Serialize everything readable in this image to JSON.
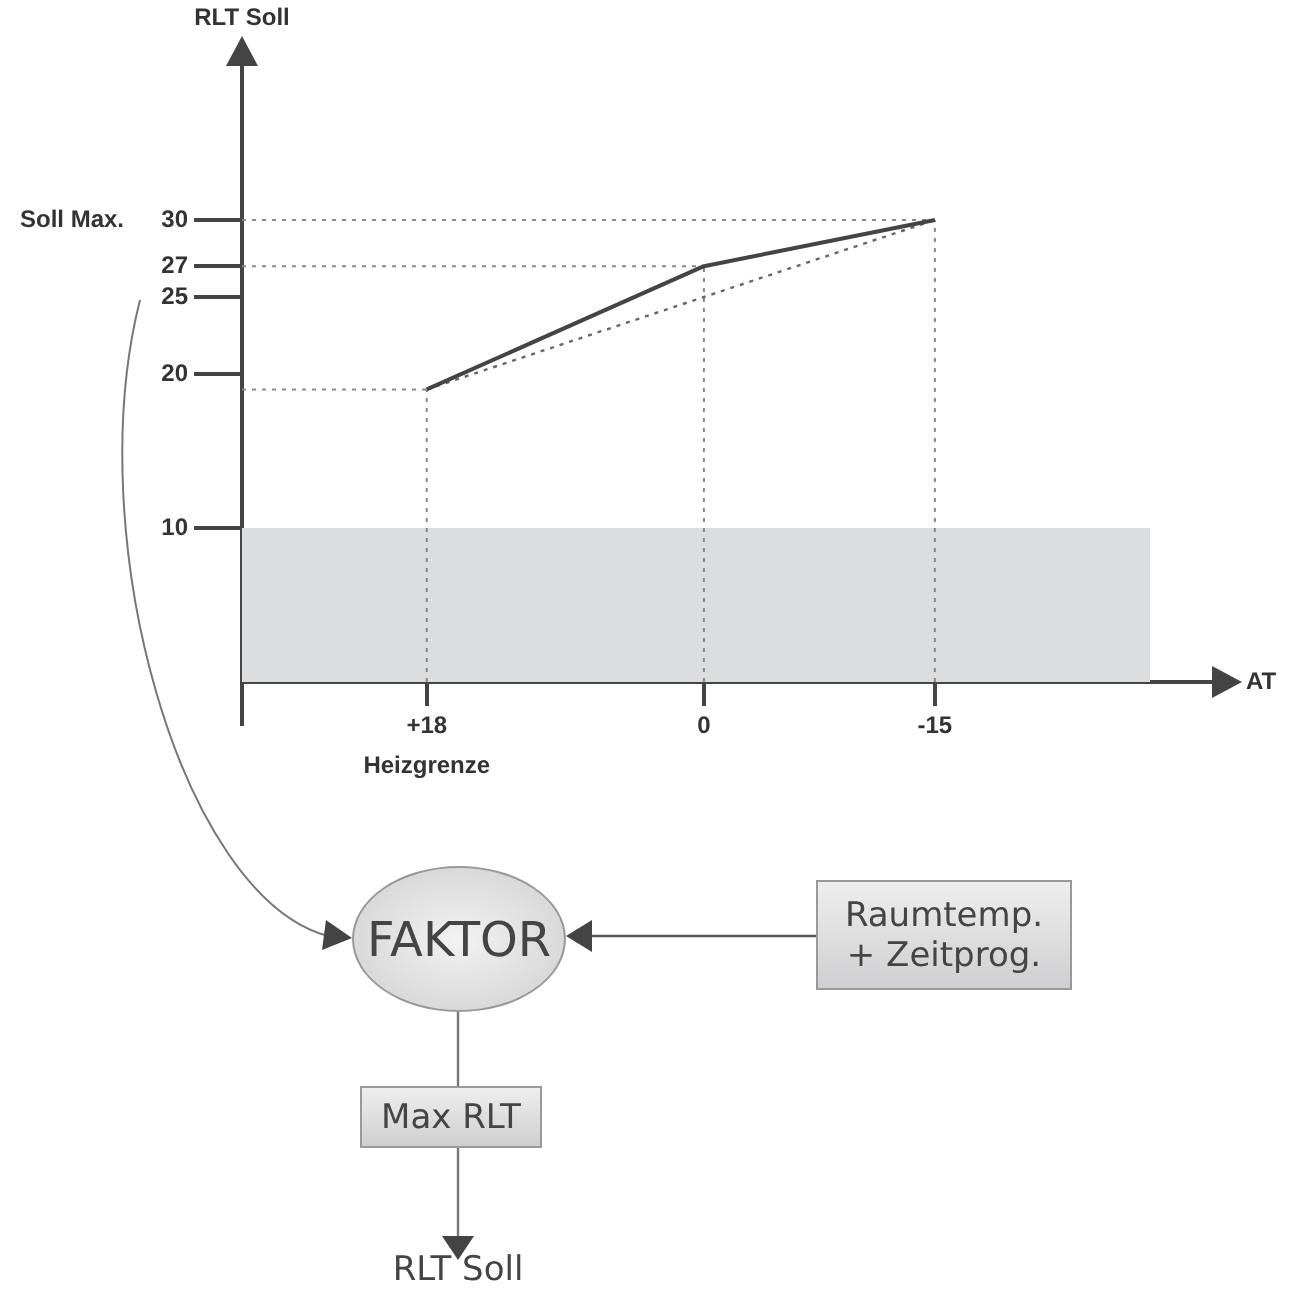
{
  "chart_data": {
    "type": "line",
    "xlabel": "AT",
    "ylabel": "RLT Soll",
    "xlim": [
      30,
      -33
    ],
    "ylim": [
      0,
      40
    ],
    "xticks": [
      {
        "value": 18,
        "label": "+18"
      },
      0,
      -15
    ],
    "yticks": [
      10,
      20,
      25,
      27,
      {
        "value": 30,
        "label": "30"
      }
    ],
    "series": [
      {
        "x": [
          18,
          0,
          -15
        ],
        "values": [
          19,
          27,
          30
        ],
        "color": "#444444",
        "line_style": "solid"
      },
      {
        "x": [
          18,
          -15
        ],
        "values": [
          19,
          30
        ],
        "color": "#666666",
        "line_style": "dotted"
      }
    ],
    "ref_lines": [
      {
        "axis": "y",
        "value": 30,
        "color": "#888888",
        "line_style": "dotted"
      },
      {
        "axis": "y",
        "value": 27,
        "color": "#888888",
        "line_style": "dotted"
      },
      {
        "axis": "y",
        "value": 19,
        "color": "#888888",
        "line_style": "dotted"
      },
      {
        "axis": "x",
        "value": 18,
        "color": "#888888",
        "line_style": "dotted"
      },
      {
        "axis": "x",
        "value": 0,
        "color": "#888888",
        "line_style": "dotted"
      },
      {
        "axis": "x",
        "value": -15,
        "color": "#888888",
        "line_style": "dotted"
      }
    ],
    "bands": [
      {
        "axis": "y",
        "from": 0,
        "to": 10,
        "color": "#dcdddf"
      }
    ],
    "annotations": [
      "Soll Max.",
      "Heizgrenze",
      "FAKTOR",
      "Raumtemp.\n+ Zeitprog.",
      "Max RLT",
      "RLT Soll"
    ]
  }
}
